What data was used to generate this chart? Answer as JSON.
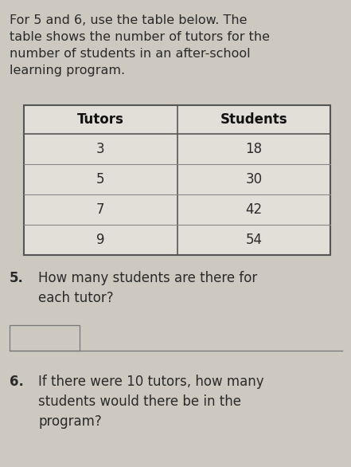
{
  "intro_text_bold": "For 5 and 6",
  "intro_text_rest": ", use the table below. The\ntable shows the number of tutors for the\nnumber of students in an after-school\nlearning program.",
  "table_headers": [
    "Tutors",
    "Students"
  ],
  "table_rows": [
    [
      "3",
      "18"
    ],
    [
      "5",
      "30"
    ],
    [
      "7",
      "42"
    ],
    [
      "9",
      "54"
    ]
  ],
  "q5_number": "5.",
  "q5_text": "How many students are there for\neach tutor?",
  "q6_number": "6.",
  "q6_text": "If there were 10 tutors, how many\nstudents would there be in the\nprogram?",
  "bg_color": "#cdc9c0",
  "table_bg": "#e2dfd8",
  "text_color": "#2a2a2a",
  "header_text_color": "#111111",
  "font_size_intro": 11.5,
  "font_size_table": 12,
  "font_size_question": 12
}
